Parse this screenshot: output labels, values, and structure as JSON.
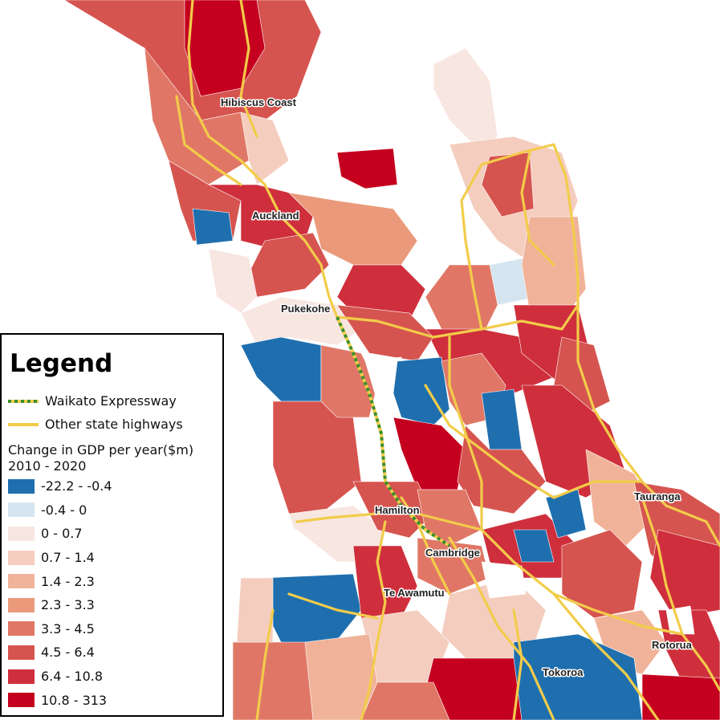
{
  "map": {
    "colors": {
      "sea": "#ffffff",
      "highway": "#f2cc4a",
      "expressway_a": "#3a8f2e",
      "expressway_b": "#f2cc4a"
    },
    "towns": {
      "hibiscus_coast": "Hibiscus Coast",
      "auckland": "Auckland",
      "pukekohe": "Pukekohe",
      "hamilton": "Hamilton",
      "cambridge": "Cambridge",
      "tauranga": "Tauranga",
      "te_awamutu": "Te Awamutu",
      "rotorua": "Rotorua",
      "tokoroa": "Tokoroa"
    }
  },
  "legend": {
    "title": "Legend",
    "lines": [
      {
        "label": "Waikato Expressway",
        "icon": "dashed-green-yellow-line"
      },
      {
        "label": "Other state highways",
        "icon": "yellow-line"
      }
    ],
    "subtitle_line1": "Change in GDP per year($m)",
    "subtitle_line2": "2010 - 2020",
    "classes": [
      {
        "label": "-22.2 - -0.4",
        "color": "#1f6faf"
      },
      {
        "label": "-0.4 - 0",
        "color": "#d5e5f0"
      },
      {
        "label": "0 - 0.7",
        "color": "#f8e6e1"
      },
      {
        "label": "0.7 - 1.4",
        "color": "#f4cdbf"
      },
      {
        "label": "1.4 - 2.3",
        "color": "#f0b39a"
      },
      {
        "label": "2.3 - 3.3",
        "color": "#ea9a7a"
      },
      {
        "label": "3.3 - 4.5",
        "color": "#e07766"
      },
      {
        "label": "4.5 - 6.4",
        "color": "#d6544f"
      },
      {
        "label": "6.4 - 10.8",
        "color": "#cf2f3c"
      },
      {
        "label": "10.8 - 313",
        "color": "#c4001e"
      }
    ]
  }
}
